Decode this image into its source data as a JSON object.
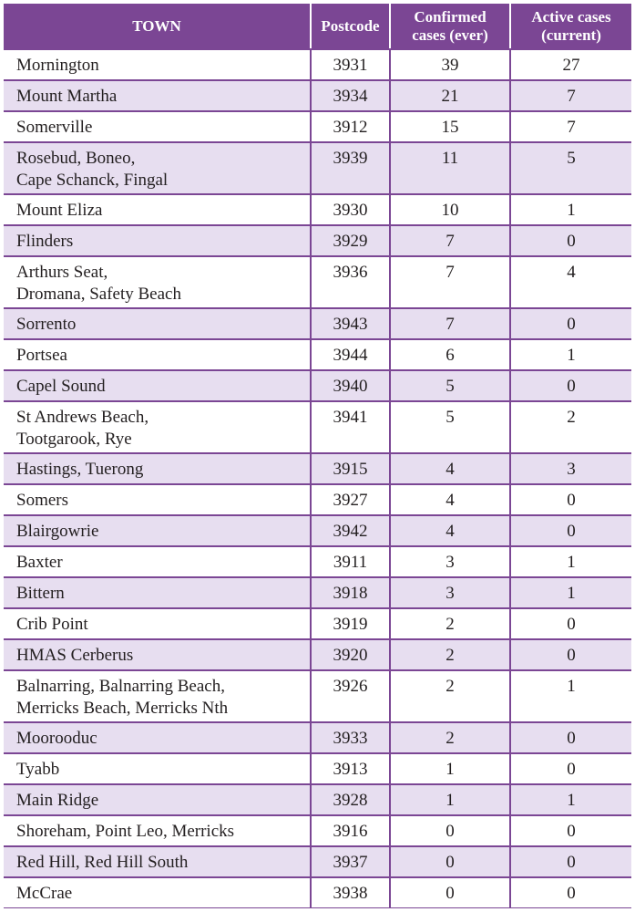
{
  "headers": {
    "town": "TOWN",
    "postcode": "Postcode",
    "confirmed": "Confirmed\ncases (ever)",
    "active": "Active cases\n(current)"
  },
  "rows": [
    {
      "town": "Mornington",
      "postcode": "3931",
      "confirmed": "39",
      "active": "27"
    },
    {
      "town": "Mount Martha",
      "postcode": "3934",
      "confirmed": "21",
      "active": "7"
    },
    {
      "town": "Somerville",
      "postcode": "3912",
      "confirmed": "15",
      "active": "7"
    },
    {
      "town": "Rosebud, Boneo,\nCape Schanck, Fingal",
      "postcode": "3939",
      "confirmed": "11",
      "active": "5"
    },
    {
      "town": "Mount Eliza",
      "postcode": "3930",
      "confirmed": "10",
      "active": "1"
    },
    {
      "town": "Flinders",
      "postcode": "3929",
      "confirmed": "7",
      "active": "0"
    },
    {
      "town": "Arthurs Seat,\nDromana, Safety Beach",
      "postcode": "3936",
      "confirmed": "7",
      "active": "4"
    },
    {
      "town": "Sorrento",
      "postcode": "3943",
      "confirmed": "7",
      "active": "0"
    },
    {
      "town": "Portsea",
      "postcode": "3944",
      "confirmed": "6",
      "active": "1"
    },
    {
      "town": "Capel Sound",
      "postcode": "3940",
      "confirmed": "5",
      "active": "0"
    },
    {
      "town": "St Andrews Beach,\nTootgarook, Rye",
      "postcode": "3941",
      "confirmed": "5",
      "active": "2"
    },
    {
      "town": "Hastings, Tuerong",
      "postcode": "3915",
      "confirmed": "4",
      "active": "3"
    },
    {
      "town": "Somers",
      "postcode": "3927",
      "confirmed": "4",
      "active": "0"
    },
    {
      "town": "Blairgowrie",
      "postcode": "3942",
      "confirmed": "4",
      "active": "0"
    },
    {
      "town": "Baxter",
      "postcode": "3911",
      "confirmed": "3",
      "active": "1"
    },
    {
      "town": "Bittern",
      "postcode": "3918",
      "confirmed": "3",
      "active": "1"
    },
    {
      "town": "Crib Point",
      "postcode": "3919",
      "confirmed": "2",
      "active": "0"
    },
    {
      "town": "HMAS Cerberus",
      "postcode": "3920",
      "confirmed": "2",
      "active": "0"
    },
    {
      "town": "Balnarring, Balnarring Beach,\nMerricks Beach, Merricks Nth",
      "postcode": "3926",
      "confirmed": "2",
      "active": "1"
    },
    {
      "town": "Moorooduc",
      "postcode": "3933",
      "confirmed": "2",
      "active": "0"
    },
    {
      "town": "Tyabb",
      "postcode": "3913",
      "confirmed": "1",
      "active": "0"
    },
    {
      "town": "Main Ridge",
      "postcode": "3928",
      "confirmed": "1",
      "active": "1"
    },
    {
      "town": "Shoreham, Point Leo, Merricks",
      "postcode": "3916",
      "confirmed": "0",
      "active": "0"
    },
    {
      "town": "Red Hill, Red Hill South",
      "postcode": "3937",
      "confirmed": "0",
      "active": "0"
    },
    {
      "town": "McCrae",
      "postcode": "3938",
      "confirmed": "0",
      "active": "0"
    }
  ],
  "colors": {
    "header_bg": "#7b4694",
    "header_text": "#ffffff",
    "row_alt_bg": "#e7def0",
    "row_bg": "#ffffff",
    "border": "#7b4694",
    "text": "#231f20"
  }
}
